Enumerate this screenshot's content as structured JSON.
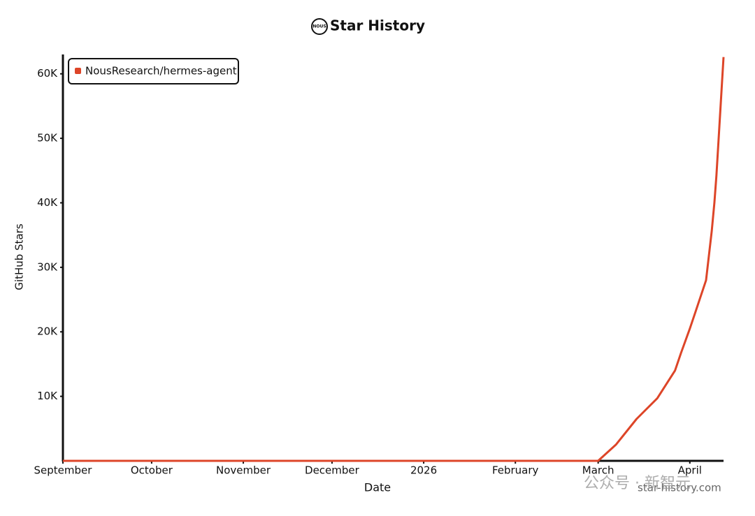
{
  "chart_data": {
    "type": "line",
    "title": "Star History",
    "logo_text": "NOUS",
    "x_label": "Date",
    "y_label": "GitHub Stars",
    "x": [
      0,
      30,
      60,
      90,
      120,
      150,
      175,
      181,
      187,
      194,
      201,
      207,
      209,
      212,
      214,
      217.5,
      219.4,
      220.3,
      221,
      221.7,
      222.7,
      223.4
    ],
    "series": [
      {
        "name": "NousResearch/hermes-agent",
        "color": "#dd4528",
        "values": [
          0,
          0,
          0,
          0,
          0,
          0,
          0,
          0,
          2500,
          6500,
          9700,
          14000,
          16700,
          20500,
          23200,
          28000,
          35600,
          40000,
          44200,
          49600,
          57200,
          62600
        ]
      }
    ],
    "xlim": [
      0,
      223.4
    ],
    "xticks": [
      {
        "value": 0,
        "label": "September"
      },
      {
        "value": 30,
        "label": "October"
      },
      {
        "value": 61,
        "label": "November"
      },
      {
        "value": 91,
        "label": "December"
      },
      {
        "value": 122,
        "label": "2026"
      },
      {
        "value": 153,
        "label": "February"
      },
      {
        "value": 181,
        "label": "March"
      },
      {
        "value": 212,
        "label": "April"
      }
    ],
    "ylim": [
      0,
      63000
    ],
    "yticks": [
      {
        "value": 10000,
        "label": "10K"
      },
      {
        "value": 20000,
        "label": "20K"
      },
      {
        "value": 30000,
        "label": "30K"
      },
      {
        "value": 40000,
        "label": "40K"
      },
      {
        "value": 50000,
        "label": "50K"
      },
      {
        "value": 60000,
        "label": "60K"
      }
    ],
    "legend": "top-left",
    "watermarks": [
      "star-history.com",
      "公众号 · 新智元"
    ]
  }
}
